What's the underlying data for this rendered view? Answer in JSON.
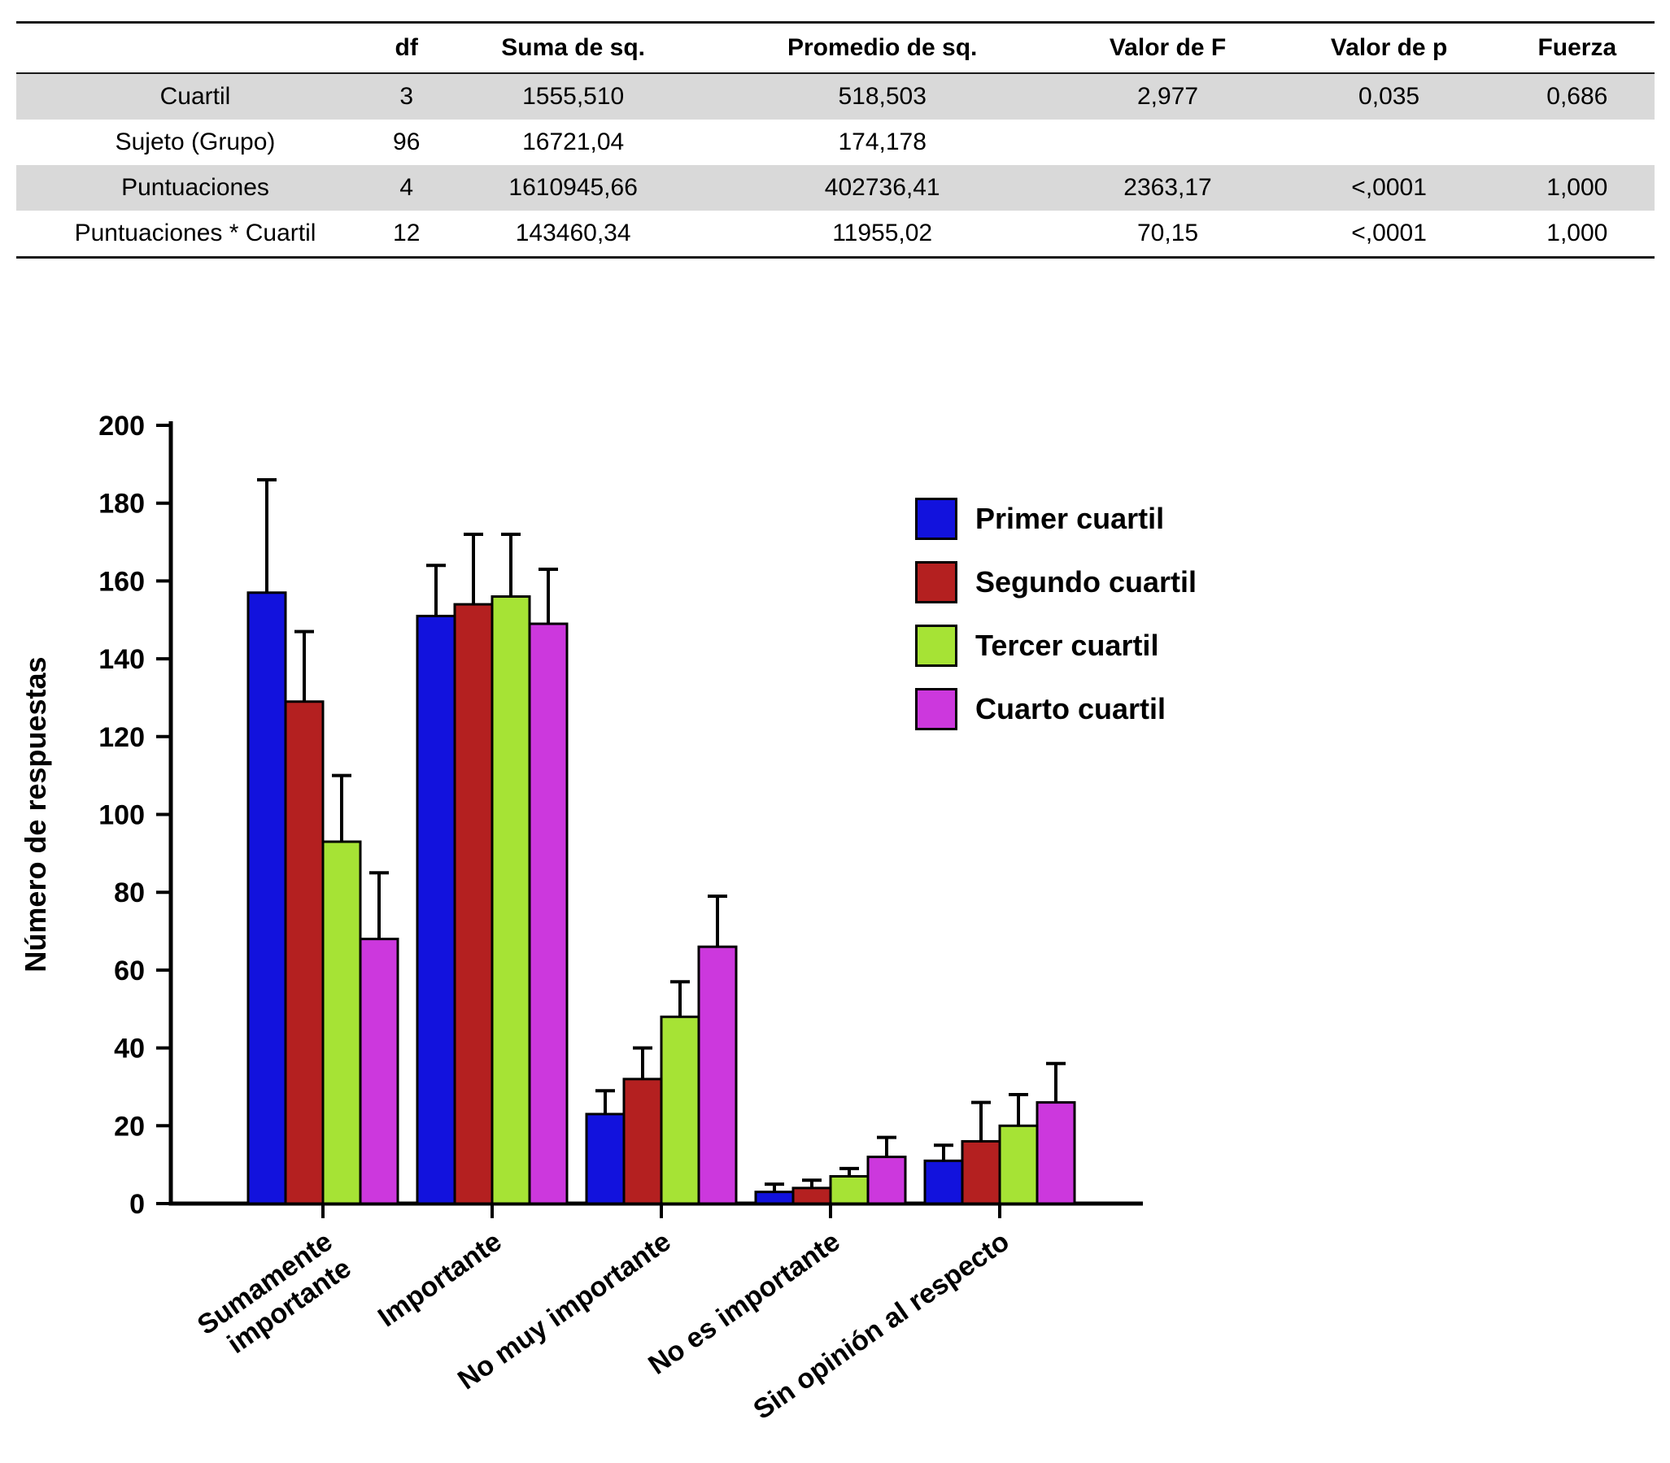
{
  "table": {
    "headers": [
      "",
      "df",
      "Suma de sq.",
      "Promedio de sq.",
      "Valor de F",
      "Valor de p",
      "Fuerza"
    ],
    "rows": [
      {
        "label": "Cuartil",
        "cells": [
          "3",
          "1555,510",
          "518,503",
          "2,977",
          "0,035",
          "0,686"
        ],
        "shaded": true
      },
      {
        "label": "Sujeto (Grupo)",
        "cells": [
          "96",
          "16721,04",
          "174,178",
          "",
          "",
          ""
        ],
        "shaded": false
      },
      {
        "label": "Puntuaciones",
        "cells": [
          "4",
          "1610945,66",
          "402736,41",
          "2363,17",
          "<,0001",
          "1,000"
        ],
        "shaded": true
      },
      {
        "label": "Puntuaciones * Cuartil",
        "cells": [
          "12",
          "143460,34",
          "11955,02",
          "70,15",
          "<,0001",
          "1,000"
        ],
        "shaded": false
      }
    ]
  },
  "chart_data": {
    "type": "bar",
    "title": "",
    "xlabel": "",
    "ylabel": "Número de respuestas",
    "ylim": [
      0,
      200
    ],
    "ytick_step": 20,
    "grid": false,
    "legend_position": "upper right",
    "categories": [
      "Sumamente\nimportante",
      "Importante",
      "No muy importante",
      "No es importante",
      "Sin opinión al respecto"
    ],
    "series": [
      {
        "name": "Primer cuartil",
        "color": "#1212dd",
        "values": [
          157,
          151,
          23,
          3,
          11
        ],
        "errors": [
          29,
          13,
          6,
          2,
          4
        ]
      },
      {
        "name": "Segundo cuartil",
        "color": "#b42020",
        "values": [
          129,
          154,
          32,
          4,
          16
        ],
        "errors": [
          18,
          18,
          8,
          2,
          10
        ]
      },
      {
        "name": "Tercer cuartil",
        "color": "#a6e335",
        "values": [
          93,
          156,
          48,
          7,
          20
        ],
        "errors": [
          17,
          16,
          9,
          2,
          8
        ]
      },
      {
        "name": "Cuarto cuartil",
        "color": "#cc38dd",
        "values": [
          68,
          149,
          66,
          12,
          26
        ],
        "errors": [
          17,
          14,
          13,
          5,
          10
        ]
      }
    ]
  }
}
